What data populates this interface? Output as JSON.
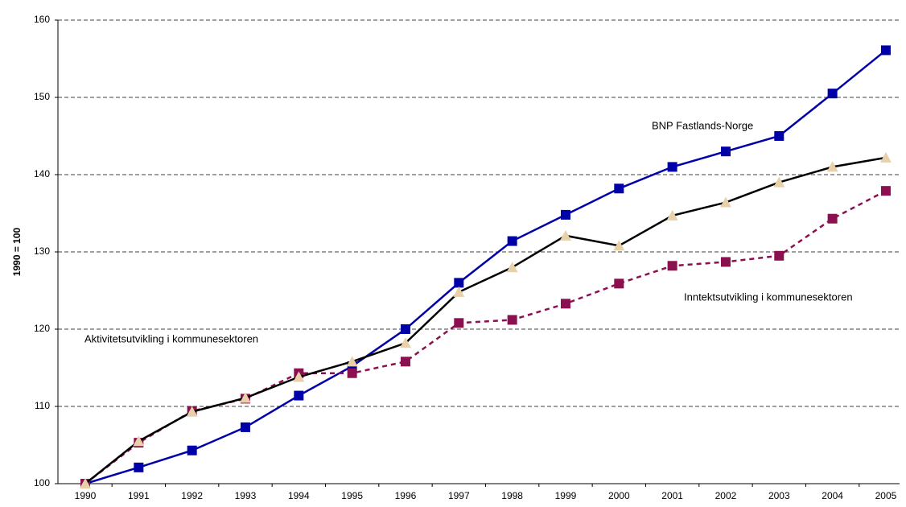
{
  "chart_data": {
    "type": "line",
    "y_label": "1990 = 100",
    "categories": [
      "1990",
      "1991",
      "1992",
      "1993",
      "1994",
      "1995",
      "1996",
      "1997",
      "1998",
      "1999",
      "2000",
      "2001",
      "2002",
      "2003",
      "2004",
      "2005"
    ],
    "ylim": [
      100,
      160
    ],
    "yticks": [
      100,
      110,
      120,
      130,
      140,
      150,
      160
    ],
    "grid": true,
    "series": [
      {
        "name": "BNP Fastlands-Norge",
        "color": "#0000a8",
        "marker_color": "#0000a8",
        "marker": "square",
        "dashed": false,
        "values": [
          100,
          102.1,
          104.3,
          107.3,
          111.4,
          115.2,
          120.0,
          126.0,
          131.4,
          134.8,
          138.2,
          141.0,
          143.0,
          145.0,
          150.5,
          156.1
        ]
      },
      {
        "name": "Inntektsutvikling i kommunesektoren",
        "color": "#8b1050",
        "marker_color": "#8b1050",
        "marker": "square",
        "dashed": true,
        "values": [
          100,
          105.3,
          109.4,
          111.0,
          114.3,
          114.3,
          115.8,
          120.8,
          121.2,
          123.3,
          125.9,
          128.2,
          128.7,
          129.5,
          134.3,
          137.9
        ]
      },
      {
        "name": "Aktivitetsutvikling i kommunesektoren",
        "color": "#000000",
        "marker_color": "#e8d0a8",
        "marker": "triangle",
        "dashed": false,
        "values": [
          100,
          105.5,
          109.3,
          111.1,
          113.8,
          115.8,
          118.2,
          124.8,
          128.0,
          132.1,
          130.8,
          134.7,
          136.4,
          139.0,
          141.0,
          142.2
        ]
      }
    ]
  }
}
